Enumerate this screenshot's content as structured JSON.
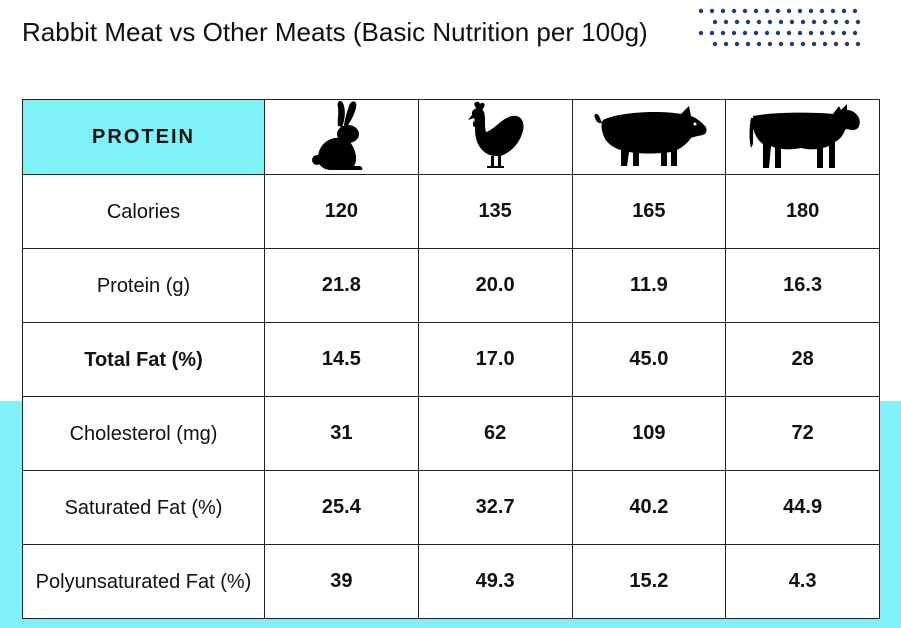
{
  "title": "Rabbit Meat vs Other Meats (Basic Nutrition per 100g)",
  "colors": {
    "accent": "#7ef2f7",
    "dots": "#1e3f73",
    "text": "#111111"
  },
  "table": {
    "header_label": "PROTEIN",
    "columns": [
      {
        "icon": "rabbit-icon"
      },
      {
        "icon": "chicken-icon"
      },
      {
        "icon": "pig-icon"
      },
      {
        "icon": "cow-icon"
      }
    ],
    "rows": [
      {
        "label": "Calories",
        "values": [
          "120",
          "135",
          "165",
          "180"
        ]
      },
      {
        "label": "Protein (g)",
        "values": [
          "21.8",
          "20.0",
          "11.9",
          "16.3"
        ]
      },
      {
        "label": "Total Fat (%)",
        "values": [
          "14.5",
          "17.0",
          "45.0",
          "28"
        ]
      },
      {
        "label": "Cholesterol (mg)",
        "values": [
          "31",
          "62",
          "109",
          "72"
        ]
      },
      {
        "label": "Saturated Fat (%)",
        "values": [
          "25.4",
          "32.7",
          "40.2",
          "44.9"
        ]
      },
      {
        "label": "Polyunsaturated Fat (%)",
        "values": [
          "39",
          "49.3",
          "15.2",
          "4.3"
        ]
      }
    ]
  }
}
